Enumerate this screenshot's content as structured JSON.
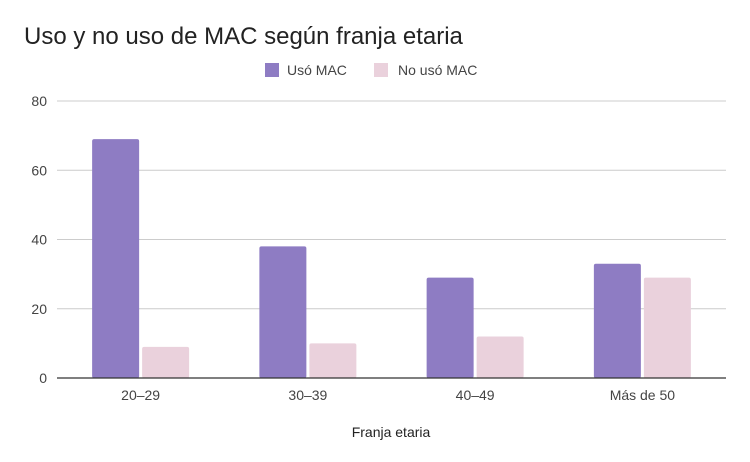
{
  "chart_data": {
    "type": "bar",
    "title": "Uso y no uso de MAC según franja etaria",
    "xlabel": "Franja etaria",
    "ylabel": "",
    "categories": [
      "20–29",
      "30–39",
      "40–49",
      "Más de 50"
    ],
    "series": [
      {
        "name": "Usó MAC",
        "values": [
          69,
          38,
          29,
          33
        ],
        "color": "#8e7cc3"
      },
      {
        "name": "No usó MAC",
        "values": [
          9,
          10,
          12,
          29
        ],
        "color": "#ead1dc"
      }
    ],
    "ylim": [
      0,
      80
    ],
    "yticks": [
      0,
      20,
      40,
      60,
      80
    ],
    "grid": true,
    "legend_position": "top-center"
  }
}
